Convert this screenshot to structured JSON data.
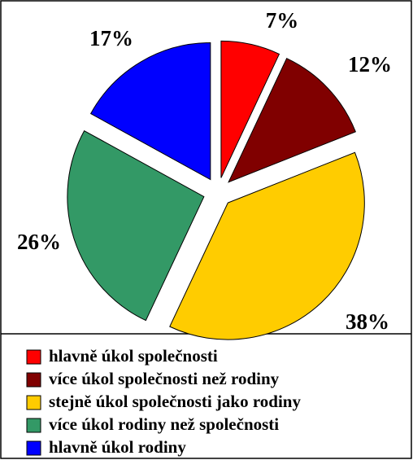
{
  "chart_data": {
    "type": "pie",
    "categories": [
      "hlavně úkol společnosti",
      "více úkol společnosti než rodiny",
      "stejně úkol společnosti jako rodiny",
      "více úkol rodiny než společnosti",
      "hlavně úkol rodiny"
    ],
    "values": [
      7,
      12,
      38,
      26,
      17
    ],
    "value_labels": [
      "7%",
      "12%",
      "38%",
      "26%",
      "17%"
    ],
    "colors": [
      "#ff0000",
      "#800000",
      "#ffcc00",
      "#339966",
      "#0000ff"
    ],
    "legend": "bottom"
  }
}
